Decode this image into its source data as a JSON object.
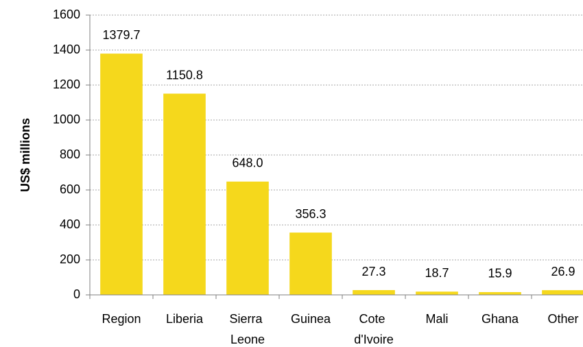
{
  "chart_data": {
    "type": "bar",
    "y_label": "US$ millions",
    "categories": [
      "Region",
      "Liberia",
      "Sierra Leone",
      "Guinea",
      "Cote d'Ivoire",
      "Mali",
      "Ghana",
      "Other"
    ],
    "values": [
      1379.7,
      1150.8,
      648.0,
      356.3,
      27.3,
      18.7,
      15.9,
      26.9
    ],
    "value_labels": [
      "1379.7",
      "1150.8",
      "648.0",
      "356.3",
      "27.3",
      "18.7",
      "15.9",
      "26.9"
    ],
    "color": "#f5d81c",
    "ylim": [
      0,
      1600
    ],
    "yticks": [
      0,
      200,
      400,
      600,
      800,
      1000,
      1200,
      1400,
      1600
    ],
    "grid": true
  }
}
